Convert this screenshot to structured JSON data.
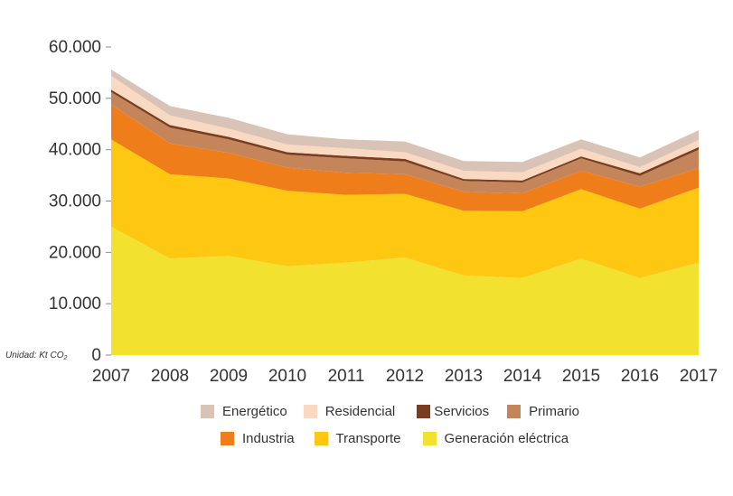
{
  "chart_data": {
    "type": "area",
    "stacked": true,
    "title": "",
    "xlabel": "",
    "ylabel": "",
    "unit_label": "Unidad: Kt CO",
    "unit_subscript": "2",
    "x": [
      "2007",
      "2008",
      "2009",
      "2010",
      "2011",
      "2012",
      "2013",
      "2014",
      "2015",
      "2016",
      "2017"
    ],
    "ylim": [
      0,
      60000
    ],
    "yticks": [
      0,
      10000,
      20000,
      30000,
      40000,
      50000,
      60000
    ],
    "ytick_labels": [
      "0",
      "10.000",
      "20.000",
      "30.000",
      "40.000",
      "50.000",
      "60.000"
    ],
    "grid": false,
    "legend_position": "bottom",
    "series": [
      {
        "name": "Generación eléctrica",
        "color": "#f3e12f",
        "values": [
          25000,
          18800,
          19300,
          17300,
          18000,
          19000,
          15500,
          15000,
          18800,
          15000,
          18000
        ]
      },
      {
        "name": "Transporte",
        "color": "#fdc712",
        "values": [
          17000,
          16400,
          15100,
          14700,
          13200,
          12400,
          12600,
          13000,
          13500,
          13500,
          14600
        ]
      },
      {
        "name": "Industria",
        "color": "#ef7d1a",
        "values": [
          6800,
          6000,
          5000,
          4500,
          4300,
          3800,
          3700,
          3500,
          3600,
          4300,
          3800
        ]
      },
      {
        "name": "Primario",
        "color": "#c5855a",
        "values": [
          2400,
          3100,
          2600,
          2500,
          2800,
          2500,
          2100,
          2100,
          2400,
          2100,
          3600
        ]
      },
      {
        "name": "Servicios",
        "color": "#7a3d1f",
        "values": [
          500,
          500,
          500,
          500,
          500,
          500,
          400,
          400,
          400,
          500,
          500
        ]
      },
      {
        "name": "Residencial",
        "color": "#f9d9c1",
        "values": [
          2700,
          1900,
          1600,
          1500,
          1500,
          1300,
          1600,
          1600,
          1500,
          1200,
          1400
        ]
      },
      {
        "name": "Energético",
        "color": "#d9c2b6",
        "values": [
          1200,
          1800,
          2100,
          2000,
          1700,
          2100,
          1900,
          2000,
          1800,
          1900,
          1900
        ]
      }
    ]
  },
  "legend": {
    "row1": [
      "Energético",
      "Residencial",
      "Servicios",
      "Primario"
    ],
    "row2": [
      "Industria",
      "Transporte",
      "Generación eléctrica"
    ]
  }
}
